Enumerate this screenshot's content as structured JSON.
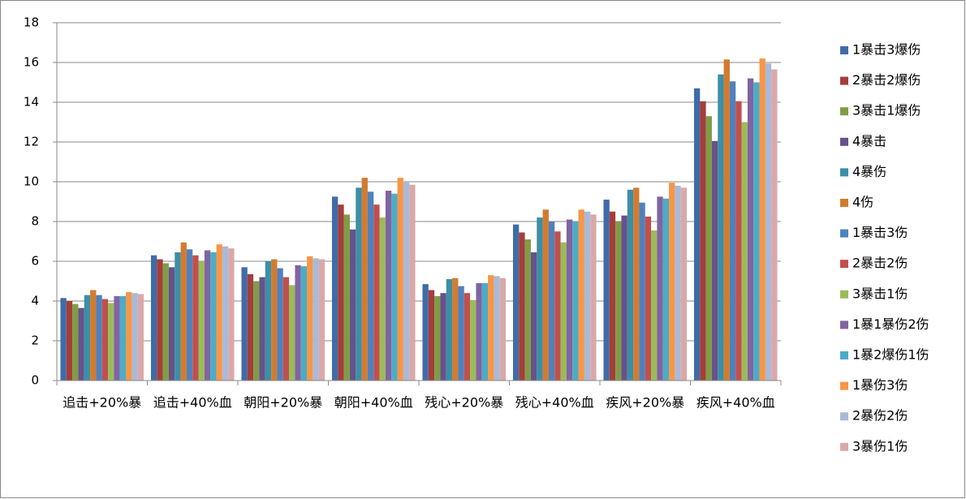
{
  "chart_data": {
    "type": "bar",
    "categories": [
      "追击+20%暴",
      "追击+40%血",
      "朝阳+20%暴",
      "朝阳+40%血",
      "残心+20%暴",
      "残心+40%血",
      "疾风+20%暴",
      "疾风+40%血"
    ],
    "series": [
      {
        "name": "1暴击3爆伤",
        "color": "#3f6ca8",
        "values": [
          4.15,
          6.3,
          5.7,
          9.25,
          4.85,
          7.85,
          9.1,
          14.7
        ]
      },
      {
        "name": "2暴击2爆伤",
        "color": "#a43e3b",
        "values": [
          4.0,
          6.1,
          5.35,
          8.85,
          4.55,
          7.45,
          8.5,
          14.05
        ]
      },
      {
        "name": "3暴击1爆伤",
        "color": "#809c47",
        "values": [
          3.85,
          5.9,
          5.0,
          8.35,
          4.25,
          7.1,
          8.0,
          13.3
        ]
      },
      {
        "name": "4暴击",
        "color": "#67528b",
        "values": [
          3.65,
          5.7,
          5.2,
          7.6,
          4.4,
          6.45,
          8.3,
          12.05
        ]
      },
      {
        "name": "4暴伤",
        "color": "#3b8fa7",
        "values": [
          4.3,
          6.45,
          6.0,
          9.7,
          5.1,
          8.2,
          9.6,
          15.4
        ]
      },
      {
        "name": "4伤",
        "color": "#d27b30",
        "values": [
          4.55,
          6.95,
          6.1,
          10.2,
          5.15,
          8.6,
          9.7,
          16.15
        ]
      },
      {
        "name": "1暴击3伤",
        "color": "#4f81bd",
        "values": [
          4.3,
          6.6,
          5.65,
          9.5,
          4.75,
          8.0,
          8.95,
          15.05
        ]
      },
      {
        "name": "2暴击2伤",
        "color": "#c0504d",
        "values": [
          4.1,
          6.3,
          5.2,
          8.85,
          4.4,
          7.5,
          8.25,
          14.05
        ]
      },
      {
        "name": "3暴击1伤",
        "color": "#9bbb59",
        "values": [
          3.9,
          6.0,
          4.8,
          8.2,
          4.05,
          6.95,
          7.55,
          13.0
        ]
      },
      {
        "name": "1暴1暴伤2伤",
        "color": "#8064a2",
        "values": [
          4.25,
          6.55,
          5.8,
          9.55,
          4.9,
          8.1,
          9.25,
          15.2
        ]
      },
      {
        "name": "1暴2爆伤1伤",
        "color": "#4bacc6",
        "values": [
          4.25,
          6.45,
          5.75,
          9.4,
          4.9,
          8.0,
          9.15,
          15.0
        ]
      },
      {
        "name": "1暴伤3伤",
        "color": "#f79646",
        "values": [
          4.45,
          6.85,
          6.25,
          10.2,
          5.3,
          8.6,
          9.95,
          16.2
        ]
      },
      {
        "name": "2暴伤2伤",
        "color": "#a9bad9",
        "values": [
          4.4,
          6.75,
          6.15,
          10.0,
          5.25,
          8.5,
          9.8,
          15.95
        ]
      },
      {
        "name": "3暴伤1伤",
        "color": "#d9a9a8",
        "values": [
          4.35,
          6.65,
          6.1,
          9.85,
          5.15,
          8.35,
          9.7,
          15.65
        ]
      }
    ],
    "ylim": [
      0,
      18
    ],
    "yticks": [
      0,
      2,
      4,
      6,
      8,
      10,
      12,
      14,
      16,
      18
    ],
    "grid": true,
    "legend": "right"
  }
}
